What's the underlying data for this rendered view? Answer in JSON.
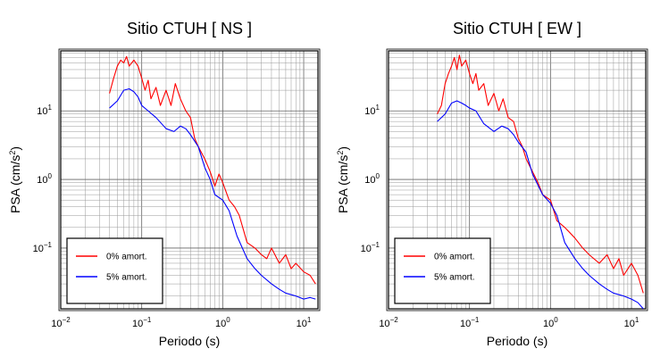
{
  "chart_data": [
    {
      "type": "line",
      "title": "Sitio CTUH [ NS ]",
      "xlabel": "Periodo (s)",
      "ylabel_main": "PSA (cm/s",
      "ylabel_sup": "2",
      "ylabel_tail": ")",
      "xscale": "log",
      "yscale": "log",
      "xlim": [
        0.01,
        15
      ],
      "ylim": [
        0.013,
        75
      ],
      "grid": true,
      "legend_position": "bottom-left",
      "x_ticks": [
        {
          "value": 0.01,
          "base": "10",
          "exp": "−2"
        },
        {
          "value": 0.1,
          "base": "10",
          "exp": "−1"
        },
        {
          "value": 1,
          "base": "10",
          "exp": "0"
        },
        {
          "value": 10,
          "base": "10",
          "exp": "1"
        }
      ],
      "y_ticks": [
        {
          "value": 0.1,
          "base": "10",
          "exp": "−1"
        },
        {
          "value": 1,
          "base": "10",
          "exp": "0"
        },
        {
          "value": 10,
          "base": "10",
          "exp": "1"
        }
      ],
      "series": [
        {
          "name": "0% amort.",
          "color": "#ff0000",
          "x": [
            0.04,
            0.045,
            0.05,
            0.055,
            0.06,
            0.065,
            0.07,
            0.08,
            0.09,
            0.1,
            0.11,
            0.12,
            0.13,
            0.15,
            0.17,
            0.2,
            0.23,
            0.26,
            0.3,
            0.35,
            0.4,
            0.45,
            0.5,
            0.6,
            0.7,
            0.8,
            0.9,
            1.0,
            1.2,
            1.4,
            1.6,
            2.0,
            2.5,
            3.0,
            3.5,
            4.0,
            5.0,
            6.0,
            7.0,
            8.0,
            10.0,
            12.0,
            14.0
          ],
          "y": [
            18,
            30,
            45,
            55,
            50,
            62,
            45,
            55,
            45,
            30,
            20,
            28,
            15,
            22,
            12,
            20,
            12,
            25,
            15,
            10,
            8,
            4,
            3,
            2,
            1.3,
            0.8,
            1.2,
            0.9,
            0.5,
            0.4,
            0.3,
            0.12,
            0.1,
            0.08,
            0.07,
            0.1,
            0.06,
            0.08,
            0.05,
            0.06,
            0.045,
            0.04,
            0.03
          ]
        },
        {
          "name": "5% amort.",
          "color": "#0000ff",
          "x": [
            0.04,
            0.05,
            0.06,
            0.07,
            0.08,
            0.09,
            0.1,
            0.12,
            0.15,
            0.2,
            0.25,
            0.3,
            0.35,
            0.4,
            0.5,
            0.6,
            0.7,
            0.8,
            1.0,
            1.2,
            1.5,
            2.0,
            2.5,
            3.0,
            4.0,
            5.0,
            6.0,
            8.0,
            10.0,
            12.0,
            14.0
          ],
          "y": [
            11,
            14,
            20,
            21,
            19,
            16,
            12,
            10,
            8,
            5.5,
            5,
            6,
            5.5,
            4.5,
            3,
            1.5,
            1.0,
            0.6,
            0.5,
            0.35,
            0.15,
            0.07,
            0.05,
            0.04,
            0.03,
            0.025,
            0.022,
            0.02,
            0.018,
            0.019,
            0.018
          ]
        }
      ]
    },
    {
      "type": "line",
      "title": "Sitio CTUH [ EW ]",
      "xlabel": "Periodo (s)",
      "ylabel_main": "PSA (cm/s",
      "ylabel_sup": "2",
      "ylabel_tail": ")",
      "xscale": "log",
      "yscale": "log",
      "xlim": [
        0.01,
        15
      ],
      "ylim": [
        0.013,
        75
      ],
      "grid": true,
      "legend_position": "bottom-left",
      "x_ticks": [
        {
          "value": 0.01,
          "base": "10",
          "exp": "−2"
        },
        {
          "value": 0.1,
          "base": "10",
          "exp": "−1"
        },
        {
          "value": 1,
          "base": "10",
          "exp": "0"
        },
        {
          "value": 10,
          "base": "10",
          "exp": "1"
        }
      ],
      "y_ticks": [
        {
          "value": 0.1,
          "base": "10",
          "exp": "−1"
        },
        {
          "value": 1,
          "base": "10",
          "exp": "0"
        },
        {
          "value": 10,
          "base": "10",
          "exp": "1"
        }
      ],
      "series": [
        {
          "name": "0% amort.",
          "color": "#ff0000",
          "x": [
            0.04,
            0.045,
            0.05,
            0.055,
            0.06,
            0.065,
            0.07,
            0.075,
            0.08,
            0.09,
            0.1,
            0.11,
            0.12,
            0.13,
            0.15,
            0.17,
            0.2,
            0.23,
            0.26,
            0.3,
            0.35,
            0.4,
            0.45,
            0.5,
            0.6,
            0.7,
            0.8,
            1.0,
            1.2,
            1.5,
            2.0,
            2.5,
            3.0,
            4.0,
            5.0,
            6.0,
            7.0,
            8.0,
            10.0,
            12.0,
            14.0
          ],
          "y": [
            9,
            12,
            25,
            35,
            45,
            60,
            40,
            65,
            45,
            55,
            35,
            25,
            35,
            20,
            25,
            12,
            18,
            10,
            15,
            8,
            7,
            4,
            3,
            2,
            1.3,
            0.9,
            0.6,
            0.5,
            0.25,
            0.2,
            0.14,
            0.1,
            0.08,
            0.06,
            0.08,
            0.05,
            0.07,
            0.04,
            0.06,
            0.04,
            0.022
          ]
        },
        {
          "name": "5% amort.",
          "color": "#0000ff",
          "x": [
            0.04,
            0.05,
            0.06,
            0.07,
            0.08,
            0.09,
            0.1,
            0.12,
            0.15,
            0.2,
            0.25,
            0.3,
            0.35,
            0.4,
            0.5,
            0.6,
            0.8,
            1.0,
            1.2,
            1.5,
            2.0,
            2.5,
            3.0,
            4.0,
            5.0,
            6.0,
            8.0,
            10.0,
            12.0,
            14.0
          ],
          "y": [
            7,
            9,
            13,
            14,
            13,
            12,
            11,
            10,
            6.5,
            5,
            6,
            5.5,
            4.5,
            3.5,
            2.5,
            1.2,
            0.6,
            0.45,
            0.3,
            0.12,
            0.07,
            0.05,
            0.04,
            0.03,
            0.025,
            0.022,
            0.02,
            0.018,
            0.016,
            0.013
          ]
        }
      ]
    }
  ]
}
